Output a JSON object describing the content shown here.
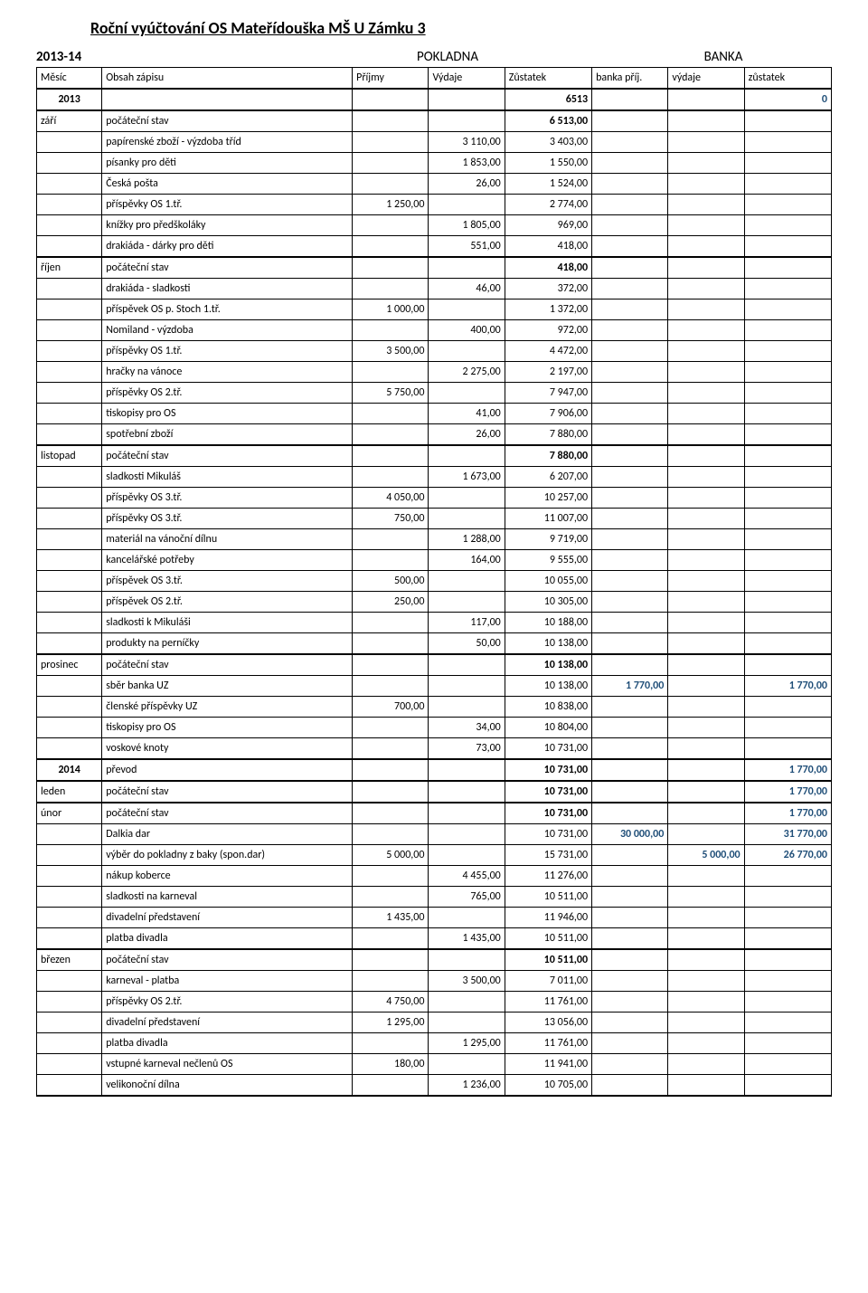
{
  "title": "Roční vyúčtování OS Mateřídouška MŠ U Zámku 3",
  "period": "2013-14",
  "pokladna_label": "POKLADNA",
  "banka_label": "BANKA",
  "headers": {
    "mesic": "Měsíc",
    "obsah": "Obsah zápisu",
    "prijmy": "Příjmy",
    "vydaje": "Výdaje",
    "zustatek": "Zůstatek",
    "bprij": "banka příj.",
    "bvyd": "výdaje",
    "bzust": "zůstatek"
  },
  "colors": {
    "text": "#000000",
    "accent": "#1f4e78",
    "border": "#000000",
    "bg": "#ffffff"
  },
  "rows": [
    {
      "mesic": "2013",
      "obsah": "",
      "prijmy": "",
      "vydaje": "",
      "zust": "6513",
      "bprij": "",
      "bvyd": "",
      "bzust": "0",
      "cls": "thick-top",
      "mesic_cls": "bold c",
      "zust_cls": "r bold",
      "bzust_cls": "r blue-bold"
    },
    {
      "mesic": "září",
      "obsah": "počáteční stav",
      "zust": "6 513,00",
      "cls": "thick-top",
      "zust_cls": "r bold"
    },
    {
      "obsah": "papírenské zboží - výzdoba tříd",
      "vydaje": "3 110,00",
      "zust": "3 403,00"
    },
    {
      "obsah": "písanky pro děti",
      "vydaje": "1 853,00",
      "zust": "1 550,00"
    },
    {
      "obsah": "Česká pošta",
      "vydaje": "26,00",
      "zust": "1 524,00"
    },
    {
      "obsah": "příspěvky OS 1.tř.",
      "prijmy": "1 250,00",
      "zust": "2 774,00"
    },
    {
      "obsah": "knížky pro předškoláky",
      "vydaje": "1 805,00",
      "zust": "969,00"
    },
    {
      "obsah": "drakiáda - dárky pro děti",
      "vydaje": "551,00",
      "zust": "418,00"
    },
    {
      "mesic": "říjen",
      "obsah": "počáteční stav",
      "zust": "418,00",
      "cls": "thick-top",
      "zust_cls": "r bold"
    },
    {
      "obsah": "drakiáda - sladkosti",
      "vydaje": "46,00",
      "zust": "372,00"
    },
    {
      "obsah": "příspěvek OS p. Stoch 1.tř.",
      "prijmy": "1 000,00",
      "zust": "1 372,00"
    },
    {
      "obsah": "Nomiland - výzdoba",
      "vydaje": "400,00",
      "zust": "972,00"
    },
    {
      "obsah": "příspěvky OS 1.tř.",
      "prijmy": "3 500,00",
      "zust": "4 472,00"
    },
    {
      "obsah": "hračky na vánoce",
      "vydaje": "2 275,00",
      "zust": "2 197,00"
    },
    {
      "obsah": "příspěvky OS 2.tř.",
      "prijmy": "5 750,00",
      "zust": "7 947,00"
    },
    {
      "obsah": "tiskopisy pro OS",
      "vydaje": "41,00",
      "zust": "7 906,00"
    },
    {
      "obsah": "spotřební zboží",
      "vydaje": "26,00",
      "zust": "7 880,00"
    },
    {
      "mesic": "listopad",
      "obsah": "počáteční stav",
      "zust": "7 880,00",
      "cls": "thick-top",
      "zust_cls": "r bold"
    },
    {
      "obsah": "sladkosti Mikuláš",
      "vydaje": "1 673,00",
      "zust": "6 207,00"
    },
    {
      "obsah": "příspěvky OS 3.tř.",
      "prijmy": "4 050,00",
      "zust": "10 257,00"
    },
    {
      "obsah": "příspěvky OS 3.tř.",
      "prijmy": "750,00",
      "zust": "11 007,00"
    },
    {
      "obsah": "materiál na vánoční dílnu",
      "vydaje": "1 288,00",
      "zust": "9 719,00"
    },
    {
      "obsah": "kancelářské potřeby",
      "vydaje": "164,00",
      "zust": "9 555,00"
    },
    {
      "obsah": "příspěvek OS 3.tř.",
      "prijmy": "500,00",
      "zust": "10 055,00"
    },
    {
      "obsah": "příspěvek OS 2.tř.",
      "prijmy": "250,00",
      "zust": "10 305,00"
    },
    {
      "obsah": "sladkosti k Mikuláši",
      "vydaje": "117,00",
      "zust": "10 188,00"
    },
    {
      "obsah": "produkty na perníčky",
      "vydaje": "50,00",
      "zust": "10 138,00"
    },
    {
      "mesic": "prosinec",
      "obsah": "počáteční stav",
      "zust": "10 138,00",
      "cls": "thick-top",
      "zust_cls": "r bold"
    },
    {
      "obsah": "sběr banka UZ",
      "zust": "10 138,00",
      "bprij": "1 770,00",
      "bzust": "1 770,00",
      "bprij_cls": "r blue-bold",
      "bzust_cls": "r blue-bold"
    },
    {
      "obsah": "členské příspěvky UZ",
      "prijmy": "700,00",
      "zust": "10 838,00"
    },
    {
      "obsah": "tiskopisy pro OS",
      "vydaje": "34,00",
      "zust": "10 804,00"
    },
    {
      "obsah": "voskové knoty",
      "vydaje": "73,00",
      "zust": "10 731,00"
    },
    {
      "mesic": "2014",
      "obsah": "převod",
      "zust": "10 731,00",
      "bzust": "1 770,00",
      "cls": "thick-top",
      "mesic_cls": "bold c",
      "zust_cls": "r bold",
      "bzust_cls": "r blue-bold"
    },
    {
      "mesic": "leden",
      "obsah": "počáteční stav",
      "zust": "10 731,00",
      "bzust": "1 770,00",
      "cls": "thick-top",
      "zust_cls": "r bold",
      "bzust_cls": "r blue-bold"
    },
    {
      "mesic": "únor",
      "obsah": "počáteční stav",
      "zust": "10 731,00",
      "bzust": "1 770,00",
      "cls": "thick-top",
      "zust_cls": "r bold",
      "bzust_cls": "r blue-bold"
    },
    {
      "obsah": "Dalkia dar",
      "zust": "10 731,00",
      "bprij": "30 000,00",
      "bzust": "31 770,00",
      "bprij_cls": "r blue-bold",
      "bzust_cls": "r blue-bold"
    },
    {
      "obsah": "výběr do pokladny z baky (spon.dar)",
      "prijmy": "5 000,00",
      "zust": "15 731,00",
      "bvyd": "5 000,00",
      "bzust": "26 770,00",
      "bvyd_cls": "r blue-bold",
      "bzust_cls": "r blue-bold"
    },
    {
      "obsah": "nákup koberce",
      "vydaje": "4 455,00",
      "zust": "11 276,00"
    },
    {
      "obsah": "sladkosti na karneval",
      "vydaje": "765,00",
      "zust": "10 511,00"
    },
    {
      "obsah": "divadelní představení",
      "prijmy": "1 435,00",
      "zust": "11 946,00"
    },
    {
      "obsah": "platba divadla",
      "vydaje": "1 435,00",
      "zust": "10 511,00"
    },
    {
      "mesic": "březen",
      "obsah": "počáteční stav",
      "zust": "10 511,00",
      "cls": "thick-top",
      "zust_cls": "r bold"
    },
    {
      "obsah": "karneval - platba",
      "vydaje": "3 500,00",
      "zust": "7 011,00"
    },
    {
      "obsah": "příspěvky OS 2.tř.",
      "prijmy": "4 750,00",
      "zust": "11 761,00"
    },
    {
      "obsah": "divadelní představení",
      "prijmy": "1 295,00",
      "zust": "13 056,00"
    },
    {
      "obsah": "platba divadla",
      "vydaje": "1 295,00",
      "zust": "11 761,00"
    },
    {
      "obsah": "vstupné karneval nečlenů OS",
      "prijmy": "180,00",
      "zust": "11 941,00"
    },
    {
      "obsah": "velikonoční dílna",
      "vydaje": "1 236,00",
      "zust": "10 705,00",
      "cls": "thick-bottom"
    }
  ]
}
